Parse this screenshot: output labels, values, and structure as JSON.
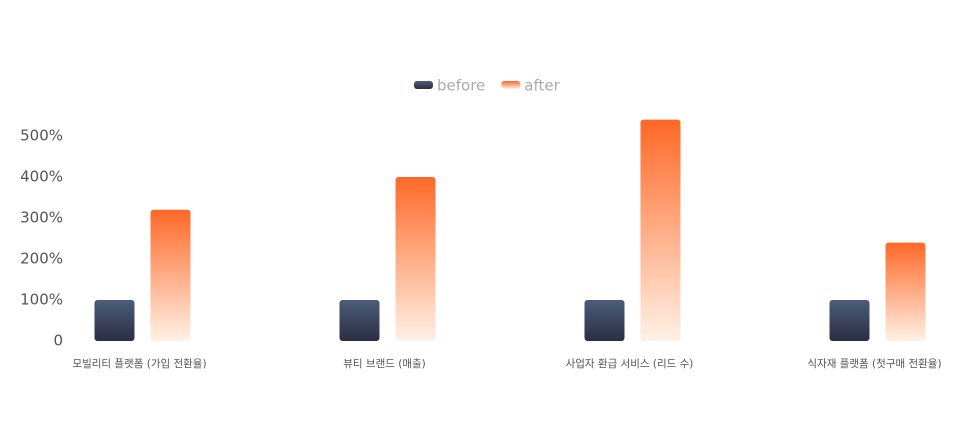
{
  "chart_data": {
    "type": "bar",
    "categories": [
      "모빌리티 플랫폼 (가입 전환율)",
      "뷰티 브랜드 (매출)",
      "사업자 환급 서비스 (리드 수)",
      "식자재 플랫폼 (첫구매 전환율)"
    ],
    "series": [
      {
        "name": "before",
        "color": "#4b5c7a",
        "color_end": "#2c2e42",
        "values": [
          100,
          100,
          100,
          100
        ]
      },
      {
        "name": "after",
        "color": "#ff6826",
        "color_end": "#fff1e6",
        "values": [
          320,
          400,
          540,
          240
        ]
      }
    ],
    "ylim": [
      0,
      550
    ],
    "yticks": [
      0,
      {
        "value": 100,
        "label": "100%"
      },
      {
        "value": 200,
        "label": "200%"
      },
      {
        "value": 300,
        "label": "300%"
      },
      {
        "value": 400,
        "label": "400%"
      },
      {
        "value": 500,
        "label": "500%"
      }
    ],
    "legend": "top"
  }
}
